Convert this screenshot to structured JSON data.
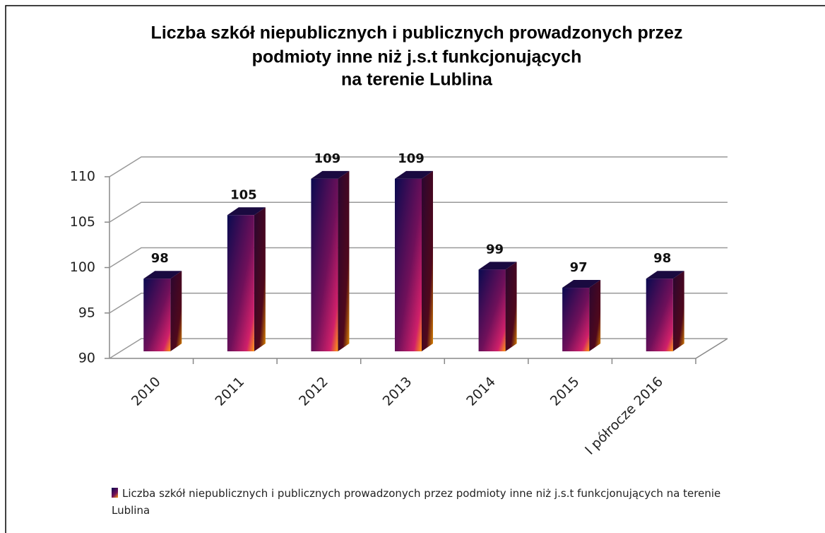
{
  "chart_data": {
    "type": "bar3d",
    "title": [
      "Liczba szkół niepublicznych  i publicznych prowadzonych przez",
      "podmioty inne niż j.s.t funkcjonujących",
      "na terenie Lublina"
    ],
    "categories": [
      "2010",
      "2011",
      "2012",
      "2013",
      "2014",
      "2015",
      "I półrocze 2016"
    ],
    "series": [
      {
        "name": "Liczba szkół niepublicznych  i publicznych  prowadzonych  przez  podmioty inne niż j.s.t funkcjonujących  na terenie Lublina",
        "color": "#5a0a4a",
        "values": [
          98,
          105,
          109,
          109,
          99,
          97,
          98
        ]
      }
    ],
    "ylim": [
      90,
      110
    ],
    "yticks": [
      90,
      95,
      100,
      105,
      110
    ],
    "grid": true,
    "legend": "bottom"
  }
}
